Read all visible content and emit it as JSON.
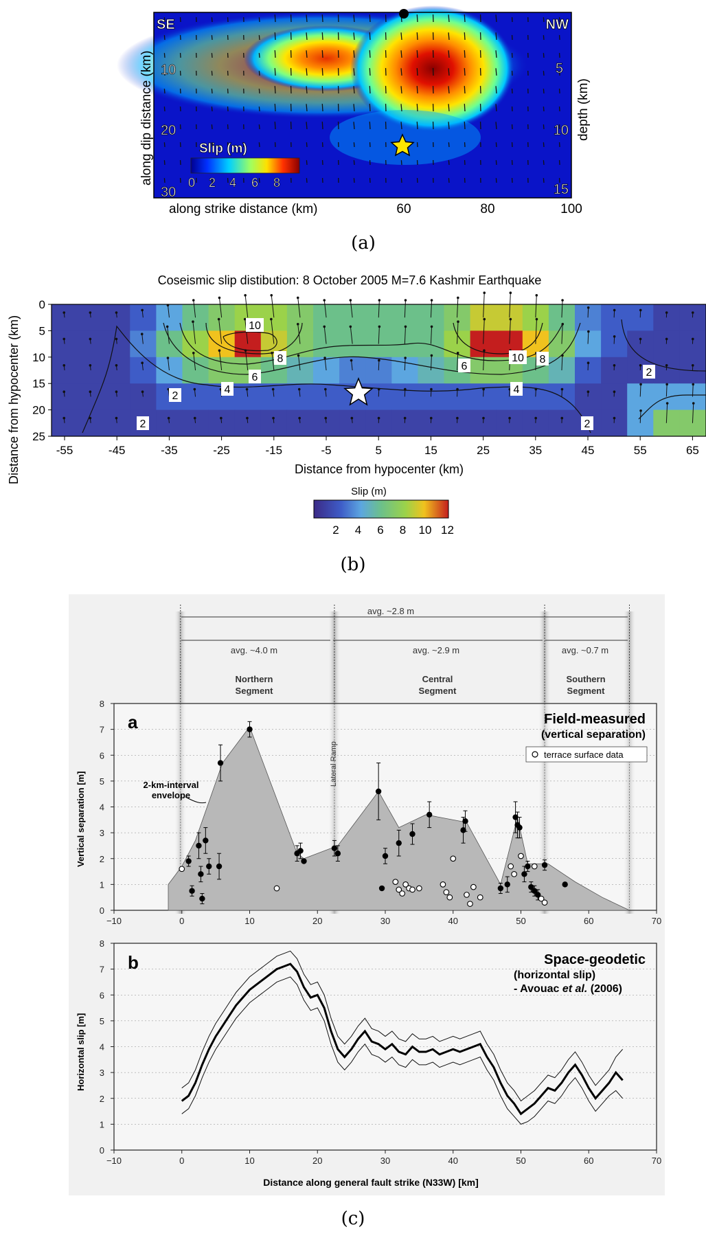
{
  "panel_a": {
    "caption": "(a)",
    "corner_left": "SE",
    "corner_right": "NW",
    "ylabel": "along dip distance (km)",
    "ylabel_right": "depth (km)",
    "xlabel": "along strike distance (km)",
    "xticks": [
      "60",
      "80",
      "100"
    ],
    "yticks_left": [
      "10",
      "20",
      "30"
    ],
    "yticks_right": [
      "5",
      "10",
      "15"
    ],
    "colorbar_title": "Slip (m)",
    "colorbar_ticks": [
      "0",
      "2",
      "4",
      "6",
      "8"
    ],
    "colors": {
      "high": "#8a0000",
      "mid": "#ffe23a",
      "low": "#0a14c8"
    }
  },
  "panel_b": {
    "caption": "(b)",
    "title": "Coseismic slip distibution: 8 October 2005 M=7.6 Kashmir Earthquake",
    "ylabel": "Distance from hypocenter (km)",
    "xlabel": "Distance from hypocenter (km)",
    "yticks": [
      "0",
      "5",
      "10",
      "15",
      "20",
      "25"
    ],
    "xticks": [
      "-55",
      "-45",
      "-35",
      "-25",
      "-15",
      "-5",
      "5",
      "15",
      "25",
      "35",
      "45",
      "55",
      "65"
    ],
    "colorbar_title": "Slip (m)",
    "colorbar_ticks": [
      "2",
      "4",
      "6",
      "8",
      "10",
      "12"
    ],
    "contour_labels": [
      "10",
      "8",
      "6",
      "4",
      "2",
      "2",
      "6",
      "10",
      "8",
      "4",
      "2",
      "2"
    ]
  },
  "panel_c": {
    "caption": "(c)",
    "top_span": "avg. ~2.8 m",
    "segments": [
      {
        "avg": "avg. ~4.0 m",
        "name1": "Northern",
        "name2": "Segment"
      },
      {
        "avg": "avg. ~2.9 m",
        "name1": "Central",
        "name2": "Segment"
      },
      {
        "avg": "avg. ~0.7 m",
        "name1": "Southern",
        "name2": "Segment"
      }
    ],
    "lateral_ramp": "Lateral Ramp",
    "top": {
      "letter": "a",
      "heading": "Field-measured",
      "subheading": "(vertical separation)",
      "legend": "terrace surface data",
      "envelope1": "2-km-interval",
      "envelope2": "envelope",
      "ylabel": "Vertical separation [m]"
    },
    "bottom": {
      "letter": "b",
      "heading": "Space-geodetic",
      "sub1": "(horizontal slip)",
      "sub2a": "- Avouac ",
      "sub2b": "et al.",
      "sub2c": " (2006)",
      "ylabel": "Horizontal slip [m]"
    },
    "xlabel": "Distance along general fault strike (N33W) [km]",
    "xticks": [
      "−10",
      "0",
      "10",
      "20",
      "30",
      "40",
      "50",
      "60",
      "70"
    ],
    "yticks": [
      "0",
      "1",
      "2",
      "3",
      "4",
      "5",
      "6",
      "7",
      "8"
    ]
  },
  "chart_data": [
    {
      "type": "heatmap",
      "panel": "(a)",
      "description_axes": {
        "x": "along strike distance (km)",
        "y": "along dip distance (km)"
      },
      "xlim": [
        0,
        100
      ],
      "ylim": [
        0,
        30
      ],
      "slip_peaks": [
        {
          "x": 67,
          "y": 9,
          "slip": 9
        },
        {
          "x": 44,
          "y": 10,
          "slip": 7
        }
      ],
      "hypocenter": {
        "x": 60,
        "y": 23
      },
      "colorbar_range": [
        0,
        9
      ]
    },
    {
      "type": "heatmap",
      "panel": "(b)",
      "title": "Coseismic slip distibution: 8 October 2005 M=7.6 Kashmir Earthquake",
      "xlabel": "Distance from hypocenter (km)",
      "ylabel": "Distance from hypocenter (km)",
      "x_centers": [
        -55,
        -50,
        -45,
        -40,
        -35,
        -30,
        -25,
        -20,
        -15,
        -10,
        -5,
        0,
        5,
        10,
        15,
        20,
        25,
        30,
        35,
        40,
        45,
        50,
        55,
        60,
        65
      ],
      "y_centers": [
        2.5,
        7.5,
        12.5,
        17.5,
        22.5
      ],
      "slip_m": [
        [
          1,
          1,
          1,
          2,
          4,
          6,
          7,
          8,
          8,
          7,
          6,
          6,
          6,
          6,
          6,
          7,
          9,
          9,
          8,
          6,
          3,
          2,
          2,
          1,
          1
        ],
        [
          1,
          1,
          1,
          3,
          6,
          8,
          10,
          12,
          9,
          7,
          6,
          6,
          6,
          6,
          6,
          8,
          12,
          12,
          10,
          7,
          4,
          2,
          1,
          1,
          1
        ],
        [
          1,
          1,
          1,
          2,
          4,
          6,
          7,
          7,
          6,
          5,
          4,
          3,
          3,
          4,
          5,
          6,
          7,
          7,
          6,
          5,
          2,
          1,
          1,
          1,
          1
        ],
        [
          1,
          1,
          1,
          1,
          2,
          2,
          2,
          2,
          2,
          2,
          2,
          2,
          2,
          2,
          2,
          2,
          2,
          2,
          2,
          2,
          1,
          1,
          4,
          4,
          4
        ],
        [
          1,
          1,
          1,
          1,
          1,
          1,
          1,
          1,
          1,
          1,
          1,
          1,
          1,
          1,
          1,
          1,
          1,
          1,
          1,
          1,
          1,
          1,
          4,
          7,
          7
        ]
      ],
      "hypocenter": {
        "x": 0,
        "y": 17
      },
      "colorbar_range": [
        0,
        12
      ],
      "ylim": [
        0,
        25
      ],
      "xlim": [
        -60,
        70
      ]
    },
    {
      "type": "scatter",
      "panel": "(c) a",
      "xlabel": "Distance along general fault strike (N33W) [km]",
      "ylabel": "Vertical separation [m]",
      "xlim": [
        -10,
        70
      ],
      "ylim": [
        0,
        8
      ],
      "envelope": {
        "x": [
          -2,
          0,
          2,
          6,
          10,
          17,
          18,
          23,
          29,
          32,
          36,
          42,
          47,
          49.5,
          51,
          54,
          58,
          62,
          66
        ],
        "y": [
          1.0,
          1.7,
          2.7,
          5.7,
          7.1,
          2.2,
          2.0,
          2.5,
          4.6,
          3.2,
          3.7,
          3.4,
          1.0,
          3.6,
          1.8,
          1.8,
          1.1,
          0.5,
          0.0
        ]
      },
      "series": [
        {
          "name": "filled",
          "x": [
            1,
            1.5,
            2.5,
            2.8,
            3,
            3.5,
            4,
            5.5,
            5.7,
            10,
            17,
            17.5,
            18,
            22.5,
            23,
            29,
            29.5,
            30,
            32,
            34,
            36.5,
            41.5,
            41.8,
            47,
            48,
            49.2,
            49.5,
            49.8,
            50.5,
            51,
            51.5,
            52,
            52.5,
            53.5,
            56.5
          ],
          "y": [
            1.9,
            0.75,
            2.5,
            1.4,
            0.45,
            2.7,
            1.7,
            1.7,
            5.7,
            7.0,
            2.2,
            2.3,
            1.9,
            2.4,
            2.2,
            4.6,
            0.85,
            2.1,
            2.6,
            2.95,
            3.7,
            3.1,
            3.45,
            0.85,
            1.0,
            3.6,
            3.3,
            3.2,
            1.4,
            1.7,
            0.9,
            0.75,
            0.6,
            1.75,
            1.0
          ],
          "yerr": [
            0.2,
            0.2,
            0.5,
            0.3,
            0.2,
            0.5,
            0.3,
            0.5,
            0.7,
            0.3,
            0.3,
            0.3,
            0,
            0.3,
            0.3,
            1.1,
            0,
            0.3,
            0.5,
            0.4,
            0.5,
            0.5,
            0.4,
            0.2,
            0.3,
            0.6,
            0.5,
            0.4,
            0.3,
            0.2,
            0.2,
            0.2,
            0.2,
            0.2,
            0
          ]
        },
        {
          "name": "terrace surface data",
          "x": [
            0,
            14,
            31.5,
            32,
            32.5,
            33,
            33.5,
            34,
            35,
            38.5,
            39,
            39.5,
            40,
            42,
            42.5,
            43,
            44,
            48.5,
            49,
            50,
            52,
            53,
            53.5
          ],
          "y": [
            1.6,
            0.85,
            1.1,
            0.8,
            0.65,
            1.0,
            0.85,
            0.8,
            0.85,
            1.0,
            0.7,
            0.5,
            2.0,
            0.6,
            0.25,
            0.9,
            0.5,
            1.7,
            1.4,
            2.1,
            1.7,
            0.45,
            0.3
          ]
        }
      ]
    },
    {
      "type": "line",
      "panel": "(c) b",
      "xlabel": "Distance along general fault strike (N33W) [km]",
      "ylabel": "Horizontal slip [m]",
      "xlim": [
        -10,
        70
      ],
      "ylim": [
        0,
        8
      ],
      "x": [
        0,
        1,
        2,
        3,
        4,
        5,
        6,
        7,
        8,
        9,
        10,
        11,
        12,
        13,
        14,
        15,
        16,
        17,
        18,
        19,
        20,
        21,
        22,
        23,
        24,
        25,
        26,
        27,
        28,
        29,
        30,
        31,
        32,
        33,
        34,
        35,
        36,
        37,
        38,
        39,
        40,
        41,
        42,
        43,
        44,
        45,
        46,
        47,
        48,
        49,
        50,
        51,
        52,
        53,
        54,
        55,
        56,
        57,
        58,
        59,
        60,
        61,
        62,
        63,
        64,
        65
      ],
      "series": [
        {
          "name": "mean",
          "values": [
            1.9,
            2.1,
            2.6,
            3.3,
            3.9,
            4.4,
            4.8,
            5.2,
            5.6,
            5.9,
            6.2,
            6.4,
            6.6,
            6.8,
            7.0,
            7.1,
            7.2,
            6.9,
            6.3,
            5.9,
            6.0,
            5.5,
            4.6,
            3.9,
            3.6,
            3.9,
            4.3,
            4.6,
            4.2,
            4.1,
            3.9,
            4.1,
            3.8,
            3.7,
            4.0,
            3.8,
            3.8,
            3.9,
            3.7,
            3.8,
            3.9,
            3.8,
            3.9,
            4.0,
            4.1,
            3.6,
            3.2,
            2.6,
            2.1,
            1.8,
            1.4,
            1.6,
            1.8,
            2.1,
            2.4,
            2.3,
            2.6,
            3.0,
            3.3,
            2.9,
            2.4,
            2.0,
            2.3,
            2.6,
            3.0,
            2.7
          ]
        },
        {
          "name": "upper",
          "values": [
            2.4,
            2.6,
            3.1,
            3.8,
            4.4,
            4.9,
            5.3,
            5.7,
            6.1,
            6.4,
            6.7,
            6.9,
            7.1,
            7.3,
            7.5,
            7.6,
            7.7,
            7.4,
            6.8,
            6.4,
            6.5,
            6.0,
            5.1,
            4.4,
            4.1,
            4.4,
            4.8,
            5.1,
            4.7,
            4.6,
            4.4,
            4.6,
            4.3,
            4.2,
            4.5,
            4.3,
            4.3,
            4.4,
            4.2,
            4.3,
            4.4,
            4.3,
            4.4,
            4.5,
            4.6,
            4.1,
            3.7,
            3.1,
            2.6,
            2.3,
            1.9,
            2.1,
            2.3,
            2.6,
            2.9,
            2.8,
            3.1,
            3.5,
            3.8,
            3.4,
            2.9,
            2.5,
            2.8,
            3.1,
            3.6,
            3.9
          ]
        },
        {
          "name": "lower",
          "values": [
            1.4,
            1.6,
            2.1,
            2.8,
            3.4,
            3.9,
            4.3,
            4.7,
            5.1,
            5.4,
            5.7,
            5.9,
            6.1,
            6.3,
            6.5,
            6.6,
            6.7,
            6.4,
            5.8,
            5.4,
            5.5,
            5.0,
            4.1,
            3.4,
            3.1,
            3.4,
            3.8,
            4.1,
            3.7,
            3.6,
            3.4,
            3.6,
            3.3,
            3.2,
            3.5,
            3.3,
            3.3,
            3.4,
            3.2,
            3.3,
            3.4,
            3.3,
            3.4,
            3.5,
            3.6,
            3.1,
            2.7,
            2.1,
            1.6,
            1.3,
            1.0,
            1.1,
            1.3,
            1.6,
            1.9,
            1.8,
            2.1,
            2.5,
            2.8,
            2.4,
            1.9,
            1.5,
            1.8,
            2.1,
            2.3,
            2.0
          ]
        }
      ]
    }
  ]
}
